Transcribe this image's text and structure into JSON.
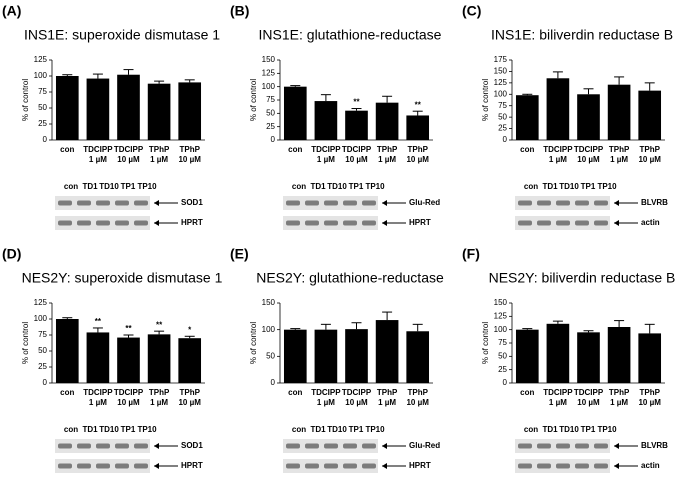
{
  "chart_data": [
    {
      "type": "bar",
      "panel": "(A)",
      "title": "INS1E: superoxide dismutase 1",
      "ylabel": "% of control",
      "categories": [
        [
          "con"
        ],
        [
          "TDCIPP",
          "1 µM"
        ],
        [
          "TDCIPP",
          "10 µM"
        ],
        [
          "TPhP",
          "1 µM"
        ],
        [
          "TPhP",
          "10 µM"
        ]
      ],
      "values": [
        100,
        96,
        102,
        88,
        90
      ],
      "errors": [
        2,
        7,
        8,
        4,
        4
      ],
      "significance": [
        null,
        null,
        null,
        null,
        null
      ],
      "color": "#000000",
      "ylim": [
        0,
        125
      ],
      "yticks": [
        0,
        25,
        50,
        75,
        100,
        125
      ],
      "blot": {
        "lanes": [
          "con",
          "TD1",
          "TD10",
          "TP1",
          "TP10"
        ],
        "bands": [
          "SOD1",
          "HPRT"
        ]
      }
    },
    {
      "type": "bar",
      "panel": "(B)",
      "title": "INS1E: glutathione-reductase",
      "ylabel": "% of control",
      "categories": [
        [
          "con"
        ],
        [
          "TDCIPP",
          "1 µM"
        ],
        [
          "TDCIPP",
          "10 µM"
        ],
        [
          "TPhP",
          "1 µM"
        ],
        [
          "TPhP",
          "10 µM"
        ]
      ],
      "values": [
        100,
        73,
        55,
        70,
        46
      ],
      "errors": [
        2,
        12,
        4,
        12,
        8
      ],
      "significance": [
        null,
        null,
        "**",
        null,
        "**"
      ],
      "color": "#000000",
      "ylim": [
        0,
        150
      ],
      "yticks": [
        0,
        25,
        50,
        75,
        100,
        125,
        150
      ],
      "blot": {
        "lanes": [
          "con",
          "TD1",
          "TD10",
          "TP1",
          "TP10"
        ],
        "bands": [
          "Glu-Red",
          "HPRT"
        ]
      }
    },
    {
      "type": "bar",
      "panel": "(C)",
      "title": "INS1E: biliverdin reductase B",
      "ylabel": "% of control",
      "categories": [
        [
          "con"
        ],
        [
          "TDCIPP",
          "1 µM"
        ],
        [
          "TDCIPP",
          "10 µM"
        ],
        [
          "TPhP",
          "1 µM"
        ],
        [
          "TPhP",
          "10 µM"
        ]
      ],
      "values": [
        98,
        135,
        100,
        121,
        108
      ],
      "errors": [
        2,
        14,
        12,
        17,
        17
      ],
      "significance": [
        null,
        null,
        null,
        null,
        null
      ],
      "color": "#000000",
      "ylim": [
        0,
        175
      ],
      "yticks": [
        0,
        25,
        50,
        75,
        100,
        125,
        150,
        175
      ],
      "blot": {
        "lanes": [
          "con",
          "TD1",
          "TD10",
          "TP1",
          "TP10"
        ],
        "bands": [
          "BLVRB",
          "actin"
        ]
      }
    },
    {
      "type": "bar",
      "panel": "(D)",
      "title": "NES2Y: superoxide dismutase 1",
      "ylabel": "% of control",
      "categories": [
        [
          "con"
        ],
        [
          "TDCIPP",
          "1 µM"
        ],
        [
          "TDCIPP",
          "10 µM"
        ],
        [
          "TPhP",
          "1 µM"
        ],
        [
          "TPhP",
          "10 µM"
        ]
      ],
      "values": [
        100,
        79,
        71,
        76,
        70
      ],
      "errors": [
        2,
        7,
        4,
        5,
        3
      ],
      "significance": [
        null,
        "**",
        "**",
        "**",
        "*"
      ],
      "color": "#000000",
      "ylim": [
        0,
        125
      ],
      "yticks": [
        0,
        25,
        50,
        75,
        100,
        125
      ],
      "blot": {
        "lanes": [
          "con",
          "TD1",
          "TD10",
          "TP1",
          "TP10"
        ],
        "bands": [
          "SOD1",
          "HPRT"
        ]
      }
    },
    {
      "type": "bar",
      "panel": "(E)",
      "title": "NES2Y: glutathione-reductase",
      "ylabel": "% of control",
      "categories": [
        [
          "con"
        ],
        [
          "TDCIPP",
          "1 µM"
        ],
        [
          "TDCIPP",
          "10 µM"
        ],
        [
          "TPhP",
          "1 µM"
        ],
        [
          "TPhP",
          "10 µM"
        ]
      ],
      "values": [
        100,
        100,
        101,
        118,
        97
      ],
      "errors": [
        2,
        10,
        12,
        15,
        13
      ],
      "significance": [
        null,
        null,
        null,
        null,
        null
      ],
      "color": "#000000",
      "ylim": [
        0,
        150
      ],
      "yticks": [
        0,
        50,
        100,
        150
      ],
      "blot": {
        "lanes": [
          "con",
          "TD1",
          "TD10",
          "TP1",
          "TP10"
        ],
        "bands": [
          "Glu-Red",
          "HPRT"
        ]
      }
    },
    {
      "type": "bar",
      "panel": "(F)",
      "title": "NES2Y: biliverdin reductase B",
      "ylabel": "% of control",
      "categories": [
        [
          "con"
        ],
        [
          "TDCIPP",
          "1 µM"
        ],
        [
          "TDCIPP",
          "10 µM"
        ],
        [
          "TPhP",
          "1 µM"
        ],
        [
          "TPhP",
          "10 µM"
        ]
      ],
      "values": [
        100,
        111,
        95,
        105,
        93
      ],
      "errors": [
        2,
        5,
        3,
        12,
        17
      ],
      "significance": [
        null,
        null,
        null,
        null,
        null
      ],
      "color": "#000000",
      "ylim": [
        0,
        150
      ],
      "yticks": [
        0,
        25,
        50,
        75,
        100,
        125,
        150
      ],
      "blot": {
        "lanes": [
          "con",
          "TD1",
          "TD10",
          "TP1",
          "TP10"
        ],
        "bands": [
          "BLVRB",
          "actin"
        ]
      }
    }
  ]
}
